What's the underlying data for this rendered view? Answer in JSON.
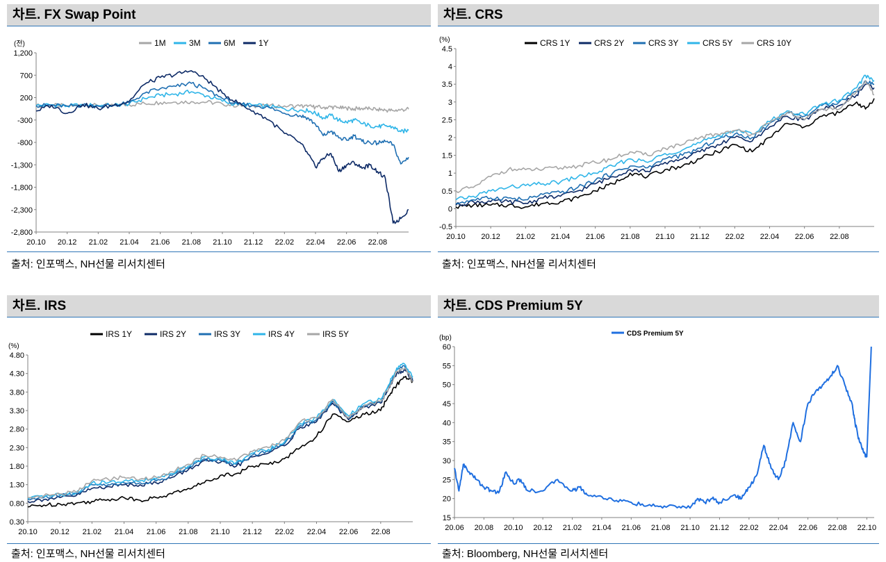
{
  "charts": [
    {
      "id": "fx",
      "title": "차트. FX Swap Point",
      "source": "출처: 인포맥스, NH선물 리서치센터"
    },
    {
      "id": "crs",
      "title": "차트. CRS",
      "source": "출처: 인포맥스, NH선물 리서치센터"
    },
    {
      "id": "irs",
      "title": "차트. IRS",
      "source": "출처: 인포맥스, NH선물 리서치센터"
    },
    {
      "id": "cds",
      "title": "차트. CDS Premium 5Y",
      "source": "출처: Bloomberg, NH선물 리서치센터"
    }
  ],
  "chart_data": [
    {
      "type": "line",
      "title": "차트. FX Swap Point",
      "ylabel": "(전)",
      "ylim": [
        -2800,
        1200
      ],
      "yticks": [
        1200,
        700,
        200,
        -300,
        -800,
        -1300,
        -1800,
        -2300,
        -2800
      ],
      "ytick_labels": [
        "1,200",
        "700",
        "200",
        "-300",
        "-800",
        "-1,300",
        "-1,800",
        "-2,300",
        "-2,800"
      ],
      "xlim": [
        0,
        24
      ],
      "xticks": [
        0,
        2,
        4,
        6,
        8,
        10,
        12,
        14,
        16,
        18,
        20,
        22
      ],
      "xtick_labels": [
        "20.10",
        "20.12",
        "21.02",
        "21.04",
        "21.06",
        "21.08",
        "21.10",
        "21.12",
        "22.02",
        "22.04",
        "22.06",
        "22.08"
      ],
      "legend": "top-center",
      "x": [
        0,
        1,
        2,
        3,
        4,
        5,
        6,
        7,
        8,
        9,
        10,
        11,
        12,
        13,
        14,
        15,
        16,
        17,
        17.5,
        18,
        18.5,
        19,
        19.5,
        20,
        20.5,
        21,
        21.5,
        22,
        22.5,
        23,
        23.5,
        24
      ],
      "series": [
        {
          "name": "1M",
          "color": "#a6a6a6",
          "values": [
            20,
            25,
            15,
            30,
            20,
            30,
            40,
            70,
            90,
            100,
            110,
            100,
            60,
            20,
            20,
            15,
            15,
            10,
            0,
            -10,
            -20,
            -10,
            -30,
            -40,
            -50,
            -40,
            -45,
            -60,
            -80,
            -90,
            -70,
            -60
          ]
        },
        {
          "name": "3M",
          "color": "#2fb5e8",
          "values": [
            20,
            40,
            10,
            40,
            20,
            30,
            60,
            180,
            250,
            280,
            330,
            240,
            120,
            40,
            30,
            0,
            -50,
            -80,
            -90,
            -150,
            -250,
            -200,
            -300,
            -350,
            -300,
            -380,
            -420,
            -450,
            -430,
            -460,
            -560,
            -530
          ]
        },
        {
          "name": "6M",
          "color": "#1f6fb2",
          "values": [
            20,
            30,
            10,
            30,
            10,
            30,
            80,
            300,
            400,
            450,
            520,
            380,
            180,
            50,
            30,
            -20,
            -150,
            -200,
            -250,
            -400,
            -650,
            -550,
            -700,
            -750,
            -650,
            -780,
            -800,
            -820,
            -780,
            -850,
            -1280,
            -1130
          ]
        },
        {
          "name": "1Y",
          "color": "#0d2a66",
          "values": [
            -100,
            30,
            -150,
            50,
            -50,
            30,
            120,
            500,
            650,
            720,
            800,
            600,
            300,
            80,
            -100,
            -300,
            -600,
            -800,
            -1050,
            -1350,
            -1150,
            -1050,
            -1450,
            -1300,
            -1250,
            -1380,
            -1300,
            -1450,
            -1600,
            -2600,
            -2500,
            -2300
          ]
        }
      ]
    },
    {
      "type": "line",
      "title": "차트. CRS",
      "ylabel": "(%)",
      "ylim": [
        -0.5,
        4.5
      ],
      "yticks": [
        -0.5,
        0,
        0.5,
        1,
        1.5,
        2,
        2.5,
        3,
        3.5,
        4,
        4.5
      ],
      "ytick_labels": [
        "-0.5",
        "0",
        "0.5",
        "1",
        "1.5",
        "2",
        "2.5",
        "3",
        "3.5",
        "4",
        "4.5"
      ],
      "xlim": [
        0,
        24
      ],
      "xticks": [
        0,
        2,
        4,
        6,
        8,
        10,
        12,
        14,
        16,
        18,
        20,
        22
      ],
      "xtick_labels": [
        "20.10",
        "20.12",
        "21.02",
        "21.04",
        "21.06",
        "21.08",
        "21.10",
        "21.12",
        "22.02",
        "22.04",
        "22.06",
        "22.08"
      ],
      "legend": "top-center",
      "x": [
        0,
        1,
        2,
        3,
        4,
        5,
        6,
        7,
        8,
        9,
        10,
        11,
        12,
        13,
        14,
        15,
        16,
        17,
        18,
        19,
        20,
        21,
        22,
        23,
        23.5,
        24
      ],
      "series": [
        {
          "name": "CRS 1Y",
          "color": "#000000",
          "values": [
            0.05,
            0.1,
            0.1,
            0.1,
            0.05,
            0.15,
            0.2,
            0.3,
            0.5,
            0.7,
            1.0,
            0.9,
            1.1,
            1.2,
            1.4,
            1.6,
            1.8,
            1.6,
            2.0,
            2.4,
            2.3,
            2.6,
            2.7,
            3.0,
            2.8,
            3.1
          ]
        },
        {
          "name": "CRS 2Y",
          "color": "#0d2a66",
          "values": [
            0.1,
            0.2,
            0.2,
            0.2,
            0.15,
            0.3,
            0.35,
            0.5,
            0.7,
            0.9,
            1.1,
            1.05,
            1.3,
            1.4,
            1.6,
            1.8,
            2.0,
            1.9,
            2.3,
            2.6,
            2.5,
            2.8,
            2.9,
            3.2,
            3.5,
            3.4
          ]
        },
        {
          "name": "CRS 3Y",
          "color": "#1f6fb2",
          "values": [
            0.15,
            0.25,
            0.3,
            0.3,
            0.25,
            0.4,
            0.45,
            0.6,
            0.8,
            1.0,
            1.2,
            1.15,
            1.4,
            1.5,
            1.7,
            1.95,
            2.1,
            2.0,
            2.4,
            2.7,
            2.6,
            2.9,
            3.0,
            3.3,
            3.6,
            3.5
          ]
        },
        {
          "name": "CRS 5Y",
          "color": "#2fb5e8",
          "values": [
            0.25,
            0.35,
            0.5,
            0.6,
            0.65,
            0.7,
            0.75,
            0.9,
            1.0,
            1.2,
            1.4,
            1.3,
            1.55,
            1.65,
            1.85,
            2.05,
            2.2,
            2.1,
            2.45,
            2.75,
            2.65,
            2.95,
            3.05,
            3.4,
            3.75,
            3.6
          ]
        },
        {
          "name": "CRS 10Y",
          "color": "#a6a6a6",
          "values": [
            0.5,
            0.6,
            0.9,
            1.1,
            1.1,
            1.1,
            1.15,
            1.2,
            1.3,
            1.4,
            1.6,
            1.5,
            1.7,
            1.8,
            2.0,
            2.1,
            2.2,
            2.1,
            2.4,
            2.7,
            2.5,
            2.8,
            2.8,
            3.3,
            3.6,
            3.2
          ]
        }
      ]
    },
    {
      "type": "line",
      "title": "차트. IRS",
      "ylabel": "(%)",
      "ylim": [
        0.3,
        4.8
      ],
      "yticks": [
        0.3,
        0.8,
        1.3,
        1.8,
        2.3,
        2.8,
        3.3,
        3.8,
        4.3,
        4.8
      ],
      "ytick_labels": [
        "0.30",
        "0.80",
        "1.30",
        "1.80",
        "2.30",
        "2.80",
        "3.30",
        "3.80",
        "4.30",
        "4.80"
      ],
      "xlim": [
        0,
        24
      ],
      "xticks": [
        0,
        2,
        4,
        6,
        8,
        10,
        12,
        14,
        16,
        18,
        20,
        22
      ],
      "xtick_labels": [
        "20.10",
        "20.12",
        "21.02",
        "21.04",
        "21.06",
        "21.08",
        "21.10",
        "21.12",
        "22.02",
        "22.04",
        "22.06",
        "22.08"
      ],
      "legend": "top-center",
      "x": [
        0,
        1,
        2,
        3,
        4,
        5,
        6,
        7,
        8,
        9,
        10,
        11,
        12,
        13,
        14,
        15,
        16,
        17,
        18,
        19,
        20,
        21,
        22,
        22.5,
        23,
        23.5,
        24
      ],
      "series": [
        {
          "name": "IRS 1Y",
          "color": "#000000",
          "values": [
            0.7,
            0.75,
            0.78,
            0.8,
            0.85,
            0.9,
            0.95,
            0.88,
            0.95,
            1.05,
            1.2,
            1.35,
            1.55,
            1.6,
            1.8,
            1.85,
            2.0,
            2.3,
            2.6,
            3.2,
            3.0,
            3.2,
            3.3,
            3.7,
            4.0,
            4.2,
            4.1
          ]
        },
        {
          "name": "IRS 2Y",
          "color": "#0d2a66",
          "values": [
            0.85,
            0.9,
            0.95,
            1.0,
            1.2,
            1.25,
            1.3,
            1.3,
            1.35,
            1.5,
            1.7,
            1.95,
            1.9,
            1.8,
            2.05,
            2.15,
            2.35,
            2.85,
            3.0,
            3.5,
            3.05,
            3.4,
            3.5,
            3.9,
            4.3,
            4.4,
            4.1
          ]
        },
        {
          "name": "IRS 3Y",
          "color": "#1f6fb2",
          "values": [
            0.9,
            0.95,
            1.0,
            1.05,
            1.3,
            1.3,
            1.35,
            1.35,
            1.4,
            1.55,
            1.75,
            2.0,
            1.95,
            1.85,
            2.1,
            2.2,
            2.4,
            2.9,
            3.05,
            3.55,
            3.1,
            3.45,
            3.55,
            3.95,
            4.4,
            4.5,
            4.15
          ]
        },
        {
          "name": "IRS 4Y",
          "color": "#2fb5e8",
          "values": [
            0.92,
            0.97,
            1.02,
            1.08,
            1.35,
            1.35,
            1.4,
            1.4,
            1.45,
            1.6,
            1.8,
            2.05,
            2.0,
            1.9,
            2.15,
            2.25,
            2.45,
            2.95,
            3.1,
            3.6,
            3.15,
            3.5,
            3.6,
            4.0,
            4.45,
            4.55,
            4.2
          ]
        },
        {
          "name": "IRS 5Y",
          "color": "#a6a6a6",
          "values": [
            0.95,
            1.0,
            1.05,
            1.1,
            1.4,
            1.45,
            1.5,
            1.45,
            1.5,
            1.65,
            1.85,
            2.1,
            2.05,
            1.95,
            2.2,
            2.3,
            2.5,
            3.0,
            3.1,
            3.6,
            3.1,
            3.45,
            3.55,
            3.9,
            4.35,
            4.45,
            4.1
          ]
        }
      ]
    },
    {
      "type": "line",
      "title": "차트. CDS Premium 5Y",
      "ylabel": "(bp)",
      "ylim": [
        15,
        60
      ],
      "yticks": [
        15,
        20,
        25,
        30,
        35,
        40,
        45,
        50,
        55,
        60
      ],
      "ytick_labels": [
        "15",
        "20",
        "25",
        "30",
        "35",
        "40",
        "45",
        "50",
        "55",
        "60"
      ],
      "xlim": [
        0,
        28.5
      ],
      "xticks": [
        0,
        2,
        4,
        6,
        8,
        10,
        12,
        14,
        16,
        18,
        20,
        22,
        24,
        26,
        28
      ],
      "xtick_labels": [
        "20.06",
        "20.08",
        "20.10",
        "20.12",
        "21.02",
        "21.04",
        "21.06",
        "21.08",
        "21.10",
        "21.12",
        "22.02",
        "22.04",
        "22.06",
        "22.08",
        "22.10"
      ],
      "legend": "top-center",
      "x": [
        0,
        0.3,
        0.6,
        1,
        1.5,
        2,
        2.5,
        3,
        3.5,
        4,
        4.5,
        5,
        6,
        7,
        8,
        8.5,
        9,
        10,
        11,
        12,
        13,
        14,
        15,
        16,
        16.5,
        17,
        17.5,
        18,
        19,
        19.5,
        20,
        20.5,
        21,
        21.5,
        22,
        22.5,
        23,
        23.5,
        24,
        24.5,
        25,
        25.5,
        26,
        26.5,
        27,
        27.2,
        27.5,
        27.8,
        28,
        28.3
      ],
      "series": [
        {
          "name": "CDS Premium 5Y",
          "color": "#1f6fe0",
          "values": [
            28,
            22,
            29,
            27,
            25,
            23,
            22,
            21.5,
            27,
            24,
            25,
            22,
            22,
            25,
            22,
            23,
            21,
            20.5,
            19.5,
            19,
            18,
            18,
            18,
            17.5,
            20,
            19,
            20,
            19,
            21,
            20,
            23,
            26,
            34,
            28,
            25,
            30,
            40,
            35,
            45,
            48,
            50,
            52,
            55,
            50,
            45,
            40,
            35,
            32,
            31,
            60
          ]
        }
      ]
    }
  ]
}
